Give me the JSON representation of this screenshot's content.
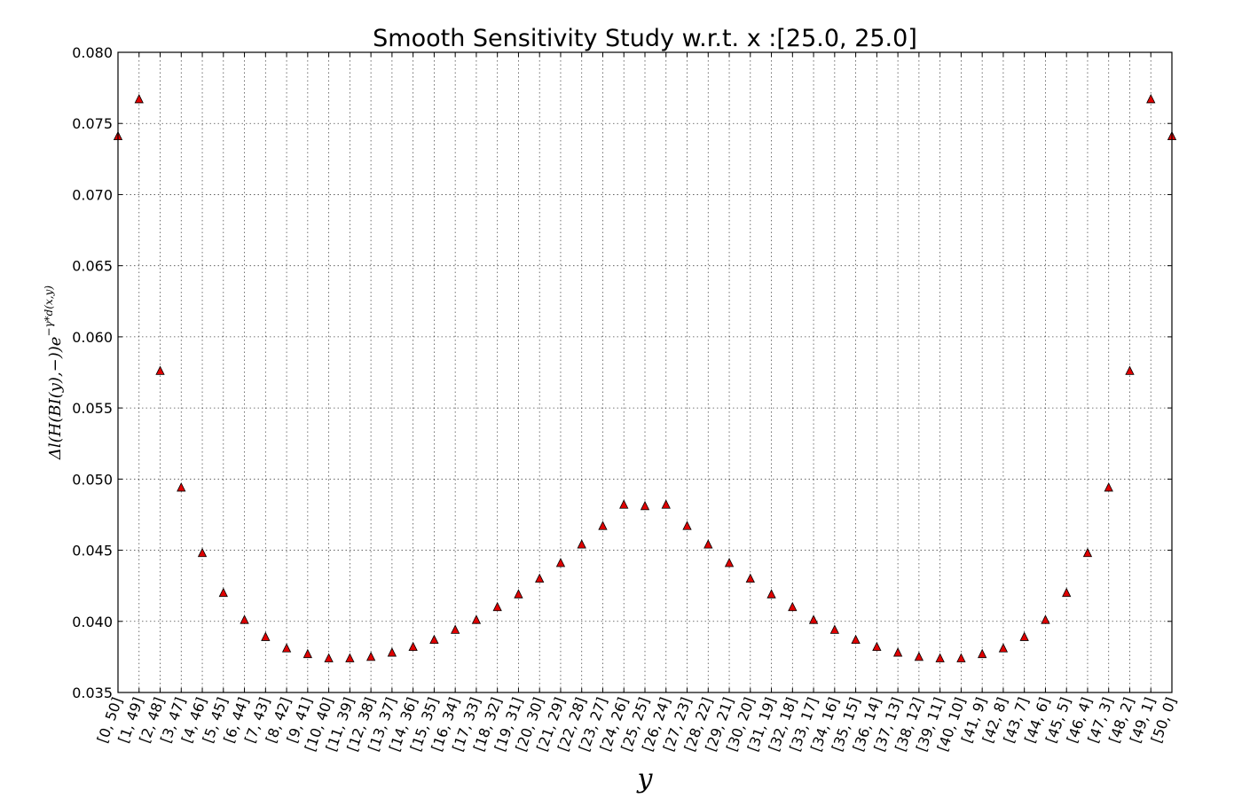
{
  "chart_data": {
    "type": "scatter",
    "title": "Smooth Sensitivity Study w.r.t. x :[25.0, 25.0]",
    "xlabel": "y",
    "ylabel": "Δ_l(H(BI(y),−))e^{−γ*d(x,y)}",
    "ylabel_main": "Δl(H(BI(y),−))e",
    "ylabel_sup": "−γ*d(x,y)",
    "ylim": [
      0.035,
      0.08
    ],
    "yticks": [
      "0.035",
      "0.040",
      "0.045",
      "0.050",
      "0.055",
      "0.060",
      "0.065",
      "0.070",
      "0.075",
      "0.080"
    ],
    "grid": true,
    "marker": "triangle",
    "marker_color": "#e00000",
    "categories": [
      "[0, 50]",
      "[1, 49]",
      "[2, 48]",
      "[3, 47]",
      "[4, 46]",
      "[5, 45]",
      "[6, 44]",
      "[7, 43]",
      "[8, 42]",
      "[9, 41]",
      "[10, 40]",
      "[11, 39]",
      "[12, 38]",
      "[13, 37]",
      "[14, 36]",
      "[15, 35]",
      "[16, 34]",
      "[17, 33]",
      "[18, 32]",
      "[19, 31]",
      "[20, 30]",
      "[21, 29]",
      "[22, 28]",
      "[23, 27]",
      "[24, 26]",
      "[25, 25]",
      "[26, 24]",
      "[27, 23]",
      "[28, 22]",
      "[29, 21]",
      "[30, 20]",
      "[31, 19]",
      "[32, 18]",
      "[33, 17]",
      "[34, 16]",
      "[35, 15]",
      "[36, 14]",
      "[37, 13]",
      "[38, 12]",
      "[39, 11]",
      "[40, 10]",
      "[41, 9]",
      "[42, 8]",
      "[43, 7]",
      "[44, 6]",
      "[45, 5]",
      "[46, 4]",
      "[47, 3]",
      "[48, 2]",
      "[49, 1]",
      "[50, 0]"
    ],
    "values": [
      0.0741,
      0.0767,
      0.0576,
      0.0494,
      0.0448,
      0.042,
      0.0401,
      0.0389,
      0.0381,
      0.0377,
      0.0374,
      0.0374,
      0.0375,
      0.0378,
      0.0382,
      0.0387,
      0.0394,
      0.0401,
      0.041,
      0.0419,
      0.043,
      0.0441,
      0.0454,
      0.0467,
      0.0482,
      0.0481,
      0.0482,
      0.0467,
      0.0454,
      0.0441,
      0.043,
      0.0419,
      0.041,
      0.0401,
      0.0394,
      0.0387,
      0.0382,
      0.0378,
      0.0375,
      0.0374,
      0.0374,
      0.0377,
      0.0381,
      0.0389,
      0.0401,
      0.042,
      0.0448,
      0.0494,
      0.0576,
      0.0767,
      0.0741
    ]
  }
}
